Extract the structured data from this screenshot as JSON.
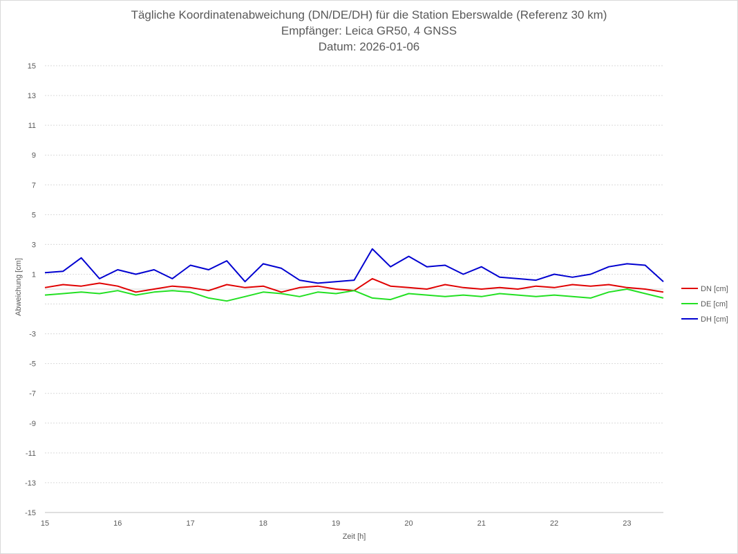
{
  "chart_data": {
    "type": "line",
    "title": "Tägliche Koordinatenabweichung (DN/DE/DH) für die Station Eberswalde (Referenz 30 km)",
    "subtitle": "Empfänger: Leica GR50, 4 GNSS",
    "date_line": "Datum: 2026-01-06",
    "xlabel": "Zeit [h]",
    "ylabel": "Abweichung [cm]",
    "xlim": [
      15,
      23.5
    ],
    "ylim": [
      -15,
      15
    ],
    "x_ticks": [
      15,
      16,
      17,
      18,
      19,
      20,
      21,
      22,
      23
    ],
    "y_ticks": [
      -15,
      -13,
      -11,
      -9,
      -7,
      -5,
      -3,
      -1,
      1,
      3,
      5,
      7,
      9,
      11,
      13,
      15
    ],
    "y_tick_labels": [
      "-15",
      "-13",
      "-11",
      "-9",
      "-7",
      "-5",
      "-3",
      "",
      "1",
      "3",
      "5",
      "7",
      "9",
      "11",
      "13",
      "15"
    ],
    "grid": true,
    "legend_position": "right",
    "series": [
      {
        "name": "DN [cm]",
        "color": "#e00000",
        "x": [
          15.0,
          15.25,
          15.5,
          15.75,
          16.0,
          16.25,
          16.5,
          16.75,
          17.0,
          17.25,
          17.5,
          17.75,
          18.0,
          18.25,
          18.5,
          18.75,
          19.0,
          19.25,
          19.5,
          19.75,
          20.0,
          20.25,
          20.5,
          20.75,
          21.0,
          21.25,
          21.5,
          21.75,
          22.0,
          22.25,
          22.5,
          22.75,
          23.0,
          23.25,
          23.5
        ],
        "values": [
          0.1,
          0.3,
          0.2,
          0.4,
          0.2,
          -0.2,
          0.0,
          0.2,
          0.1,
          -0.1,
          0.3,
          0.1,
          0.2,
          -0.2,
          0.1,
          0.2,
          0.0,
          -0.1,
          0.7,
          0.2,
          0.1,
          0.0,
          0.3,
          0.1,
          0.0,
          0.1,
          0.0,
          0.2,
          0.1,
          0.3,
          0.2,
          0.3,
          0.1,
          0.0,
          -0.2
        ]
      },
      {
        "name": "DE [cm]",
        "color": "#22e022",
        "x": [
          15.0,
          15.25,
          15.5,
          15.75,
          16.0,
          16.25,
          16.5,
          16.75,
          17.0,
          17.25,
          17.5,
          17.75,
          18.0,
          18.25,
          18.5,
          18.75,
          19.0,
          19.25,
          19.5,
          19.75,
          20.0,
          20.25,
          20.5,
          20.75,
          21.0,
          21.25,
          21.5,
          21.75,
          22.0,
          22.25,
          22.5,
          22.75,
          23.0,
          23.25,
          23.5
        ],
        "values": [
          -0.4,
          -0.3,
          -0.2,
          -0.3,
          -0.1,
          -0.4,
          -0.2,
          -0.1,
          -0.2,
          -0.6,
          -0.8,
          -0.5,
          -0.2,
          -0.3,
          -0.5,
          -0.2,
          -0.3,
          -0.1,
          -0.6,
          -0.7,
          -0.3,
          -0.4,
          -0.5,
          -0.4,
          -0.5,
          -0.3,
          -0.4,
          -0.5,
          -0.4,
          -0.5,
          -0.6,
          -0.2,
          0.0,
          -0.3,
          -0.6
        ]
      },
      {
        "name": "DH [cm]",
        "color": "#0000d0",
        "x": [
          15.0,
          15.25,
          15.5,
          15.75,
          16.0,
          16.25,
          16.5,
          16.75,
          17.0,
          17.25,
          17.5,
          17.75,
          18.0,
          18.25,
          18.5,
          18.75,
          19.0,
          19.25,
          19.5,
          19.75,
          20.0,
          20.25,
          20.5,
          20.75,
          21.0,
          21.25,
          21.5,
          21.75,
          22.0,
          22.25,
          22.5,
          22.75,
          23.0,
          23.25,
          23.5
        ],
        "values": [
          1.1,
          1.2,
          2.1,
          0.7,
          1.3,
          1.0,
          1.3,
          0.7,
          1.6,
          1.3,
          1.9,
          0.5,
          1.7,
          1.4,
          0.6,
          0.4,
          0.5,
          0.6,
          2.7,
          1.5,
          2.2,
          1.5,
          1.6,
          1.0,
          1.5,
          0.8,
          0.7,
          0.6,
          1.0,
          0.8,
          1.0,
          1.5,
          1.7,
          1.6,
          0.5
        ]
      }
    ]
  }
}
